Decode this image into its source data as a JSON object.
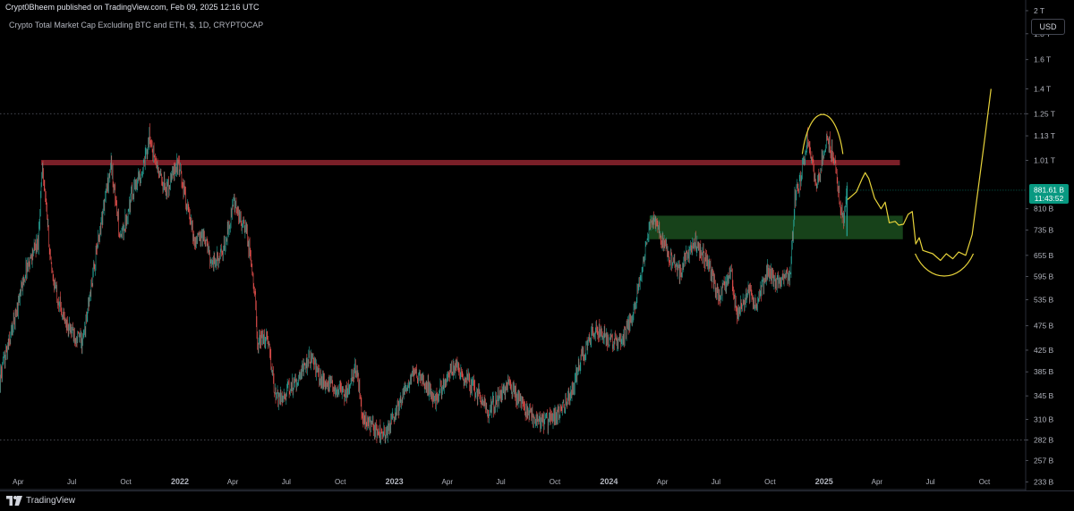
{
  "header": {
    "published": "Crypt0Bheem published on TradingView.com, Feb 09, 2025 12:16 UTC",
    "symbol": "Crypto Total Market Cap Excluding BTC and ETH, $, 1D, CRYPTOCAP"
  },
  "currency_label": "USD",
  "footer": {
    "brand": "TradingView"
  },
  "colors": {
    "up": "#26a69a",
    "down": "#ef5350",
    "resistance": "#7a1f28",
    "support_zone": "#1b4d1f",
    "projection": "#e6d23a",
    "price_tag": "#089981"
  },
  "chart_data": {
    "type": "candlestick",
    "scale": "log",
    "y_range": [
      225000000000.0,
      2100000000000.0
    ],
    "x_range": [
      "2021-03-01",
      "2025-12-10"
    ],
    "y_ticks": [
      {
        "label": "2 T",
        "value": 2000000000000.0
      },
      {
        "label": "1.8 T",
        "value": 1800000000000.0
      },
      {
        "label": "1.6 T",
        "value": 1600000000000.0
      },
      {
        "label": "1.4 T",
        "value": 1400000000000.0
      },
      {
        "label": "1.25 T",
        "value": 1250000000000.0
      },
      {
        "label": "1.13 T",
        "value": 1130000000000.0
      },
      {
        "label": "1.01 T",
        "value": 1010000000000.0
      },
      {
        "label": "810 B",
        "value": 810000000000.0
      },
      {
        "label": "735 B",
        "value": 735000000000.0
      },
      {
        "label": "655 B",
        "value": 655000000000.0
      },
      {
        "label": "595 B",
        "value": 595000000000.0
      },
      {
        "label": "535 B",
        "value": 535000000000.0
      },
      {
        "label": "475 B",
        "value": 475000000000.0
      },
      {
        "label": "425 B",
        "value": 425000000000.0
      },
      {
        "label": "385 B",
        "value": 385000000000.0
      },
      {
        "label": "345 B",
        "value": 345000000000.0
      },
      {
        "label": "310 B",
        "value": 310000000000.0
      },
      {
        "label": "282 B",
        "value": 282000000000.0
      },
      {
        "label": "257 B",
        "value": 257000000000.0
      },
      {
        "label": "233 B",
        "value": 233000000000.0
      }
    ],
    "x_ticks": [
      {
        "label": "Apr",
        "date": "2021-04-01"
      },
      {
        "label": "Jul",
        "date": "2021-07-01"
      },
      {
        "label": "Oct",
        "date": "2021-10-01"
      },
      {
        "label": "2022",
        "date": "2022-01-01",
        "bold": true
      },
      {
        "label": "Apr",
        "date": "2022-04-01"
      },
      {
        "label": "Jul",
        "date": "2022-07-01"
      },
      {
        "label": "Oct",
        "date": "2022-10-01"
      },
      {
        "label": "2023",
        "date": "2023-01-01",
        "bold": true
      },
      {
        "label": "Apr",
        "date": "2023-04-01"
      },
      {
        "label": "Jul",
        "date": "2023-07-01"
      },
      {
        "label": "Oct",
        "date": "2023-10-01"
      },
      {
        "label": "2024",
        "date": "2024-01-01",
        "bold": true
      },
      {
        "label": "Apr",
        "date": "2024-04-01"
      },
      {
        "label": "Jul",
        "date": "2024-07-01"
      },
      {
        "label": "Oct",
        "date": "2024-10-01"
      },
      {
        "label": "2025",
        "date": "2025-01-01",
        "bold": true
      },
      {
        "label": "Apr",
        "date": "2025-04-01"
      },
      {
        "label": "Jul",
        "date": "2025-07-01"
      },
      {
        "label": "Oct",
        "date": "2025-10-01"
      }
    ],
    "price_path": [
      [
        "2021-03-01",
        372
      ],
      [
        "2021-03-20",
        460
      ],
      [
        "2021-04-15",
        620
      ],
      [
        "2021-05-05",
        700
      ],
      [
        "2021-05-12",
        1000
      ],
      [
        "2021-05-28",
        600
      ],
      [
        "2021-06-20",
        480
      ],
      [
        "2021-07-20",
        440
      ],
      [
        "2021-08-15",
        700
      ],
      [
        "2021-09-06",
        1000
      ],
      [
        "2021-09-22",
        700
      ],
      [
        "2021-10-15",
        900
      ],
      [
        "2021-11-01",
        980
      ],
      [
        "2021-11-10",
        1130
      ],
      [
        "2021-11-25",
        960
      ],
      [
        "2021-12-10",
        880
      ],
      [
        "2021-12-28",
        1000
      ],
      [
        "2022-01-10",
        860
      ],
      [
        "2022-01-25",
        700
      ],
      [
        "2022-02-10",
        720
      ],
      [
        "2022-02-25",
        630
      ],
      [
        "2022-03-15",
        660
      ],
      [
        "2022-04-02",
        830
      ],
      [
        "2022-04-25",
        720
      ],
      [
        "2022-05-09",
        560
      ],
      [
        "2022-05-12",
        440
      ],
      [
        "2022-05-30",
        450
      ],
      [
        "2022-06-13",
        340
      ],
      [
        "2022-06-25",
        345
      ],
      [
        "2022-07-15",
        365
      ],
      [
        "2022-08-12",
        415
      ],
      [
        "2022-08-28",
        370
      ],
      [
        "2022-09-15",
        362
      ],
      [
        "2022-10-10",
        348
      ],
      [
        "2022-10-28",
        395
      ],
      [
        "2022-11-09",
        310
      ],
      [
        "2022-11-28",
        295
      ],
      [
        "2022-12-20",
        292
      ],
      [
        "2023-01-15",
        345
      ],
      [
        "2023-02-05",
        383
      ],
      [
        "2023-02-25",
        365
      ],
      [
        "2023-03-10",
        338
      ],
      [
        "2023-03-28",
        372
      ],
      [
        "2023-04-15",
        395
      ],
      [
        "2023-05-15",
        360
      ],
      [
        "2023-06-10",
        322
      ],
      [
        "2023-06-25",
        340
      ],
      [
        "2023-07-14",
        365
      ],
      [
        "2023-08-17",
        318
      ],
      [
        "2023-09-12",
        305
      ],
      [
        "2023-10-10",
        318
      ],
      [
        "2023-10-28",
        350
      ],
      [
        "2023-11-15",
        410
      ],
      [
        "2023-12-10",
        470
      ],
      [
        "2024-01-03",
        445
      ],
      [
        "2024-01-25",
        445
      ],
      [
        "2024-02-15",
        520
      ],
      [
        "2024-03-05",
        700
      ],
      [
        "2024-03-14",
        790
      ],
      [
        "2024-04-13",
        645
      ],
      [
        "2024-05-01",
        610
      ],
      [
        "2024-05-25",
        700
      ],
      [
        "2024-06-20",
        620
      ],
      [
        "2024-07-05",
        540
      ],
      [
        "2024-07-28",
        600
      ],
      [
        "2024-08-05",
        500
      ],
      [
        "2024-08-25",
        560
      ],
      [
        "2024-09-06",
        520
      ],
      [
        "2024-09-28",
        615
      ],
      [
        "2024-10-10",
        575
      ],
      [
        "2024-11-05",
        600
      ],
      [
        "2024-11-12",
        850
      ],
      [
        "2024-11-22",
        920
      ],
      [
        "2024-12-03",
        1120
      ],
      [
        "2024-12-10",
        1000
      ],
      [
        "2024-12-20",
        900
      ],
      [
        "2025-01-06",
        1130
      ],
      [
        "2025-01-18",
        1010
      ],
      [
        "2025-02-03",
        760
      ],
      [
        "2025-02-09",
        881.61
      ]
    ],
    "resistance": {
      "value": 1000000000000.0,
      "from": "2021-05-10",
      "to": "2025-05-10"
    },
    "support_zone": {
      "top": 785000000000.0,
      "bottom": 705000000000.0,
      "from": "2024-03-10",
      "to": "2025-05-15"
    },
    "projection_path": [
      [
        "2025-02-10",
        845
      ],
      [
        "2025-02-25",
        875
      ],
      [
        "2025-03-07",
        930
      ],
      [
        "2025-03-12",
        955
      ],
      [
        "2025-03-18",
        930
      ],
      [
        "2025-03-28",
        850
      ],
      [
        "2025-04-08",
        810
      ],
      [
        "2025-04-15",
        835
      ],
      [
        "2025-04-22",
        760
      ],
      [
        "2025-05-02",
        765
      ],
      [
        "2025-05-08",
        752
      ],
      [
        "2025-05-16",
        755
      ],
      [
        "2025-05-24",
        790
      ],
      [
        "2025-05-31",
        800
      ],
      [
        "2025-06-06",
        690
      ],
      [
        "2025-06-12",
        710
      ],
      [
        "2025-06-18",
        670
      ],
      [
        "2025-07-05",
        660
      ],
      [
        "2025-07-18",
        640
      ],
      [
        "2025-07-28",
        660
      ],
      [
        "2025-08-08",
        645
      ],
      [
        "2025-08-18",
        665
      ],
      [
        "2025-08-30",
        655
      ],
      [
        "2025-09-10",
        720
      ],
      [
        "2025-09-22",
        920
      ],
      [
        "2025-10-02",
        1130
      ],
      [
        "2025-10-12",
        1400
      ]
    ],
    "top_arc": {
      "from": "2024-11-25",
      "to": "2025-02-02",
      "base": 1040000000000.0,
      "peak": 1270000000000.0
    },
    "bottom_arc": {
      "from": "2025-06-05",
      "to": "2025-09-12",
      "base": 660000000000.0,
      "trough": 600000000000.0
    },
    "dotted_levels": [
      1250000000000.0,
      282000000000.0
    ],
    "current_price": {
      "value": 881610000000.0,
      "label": "881.61 B",
      "countdown": "11:43:52"
    }
  }
}
